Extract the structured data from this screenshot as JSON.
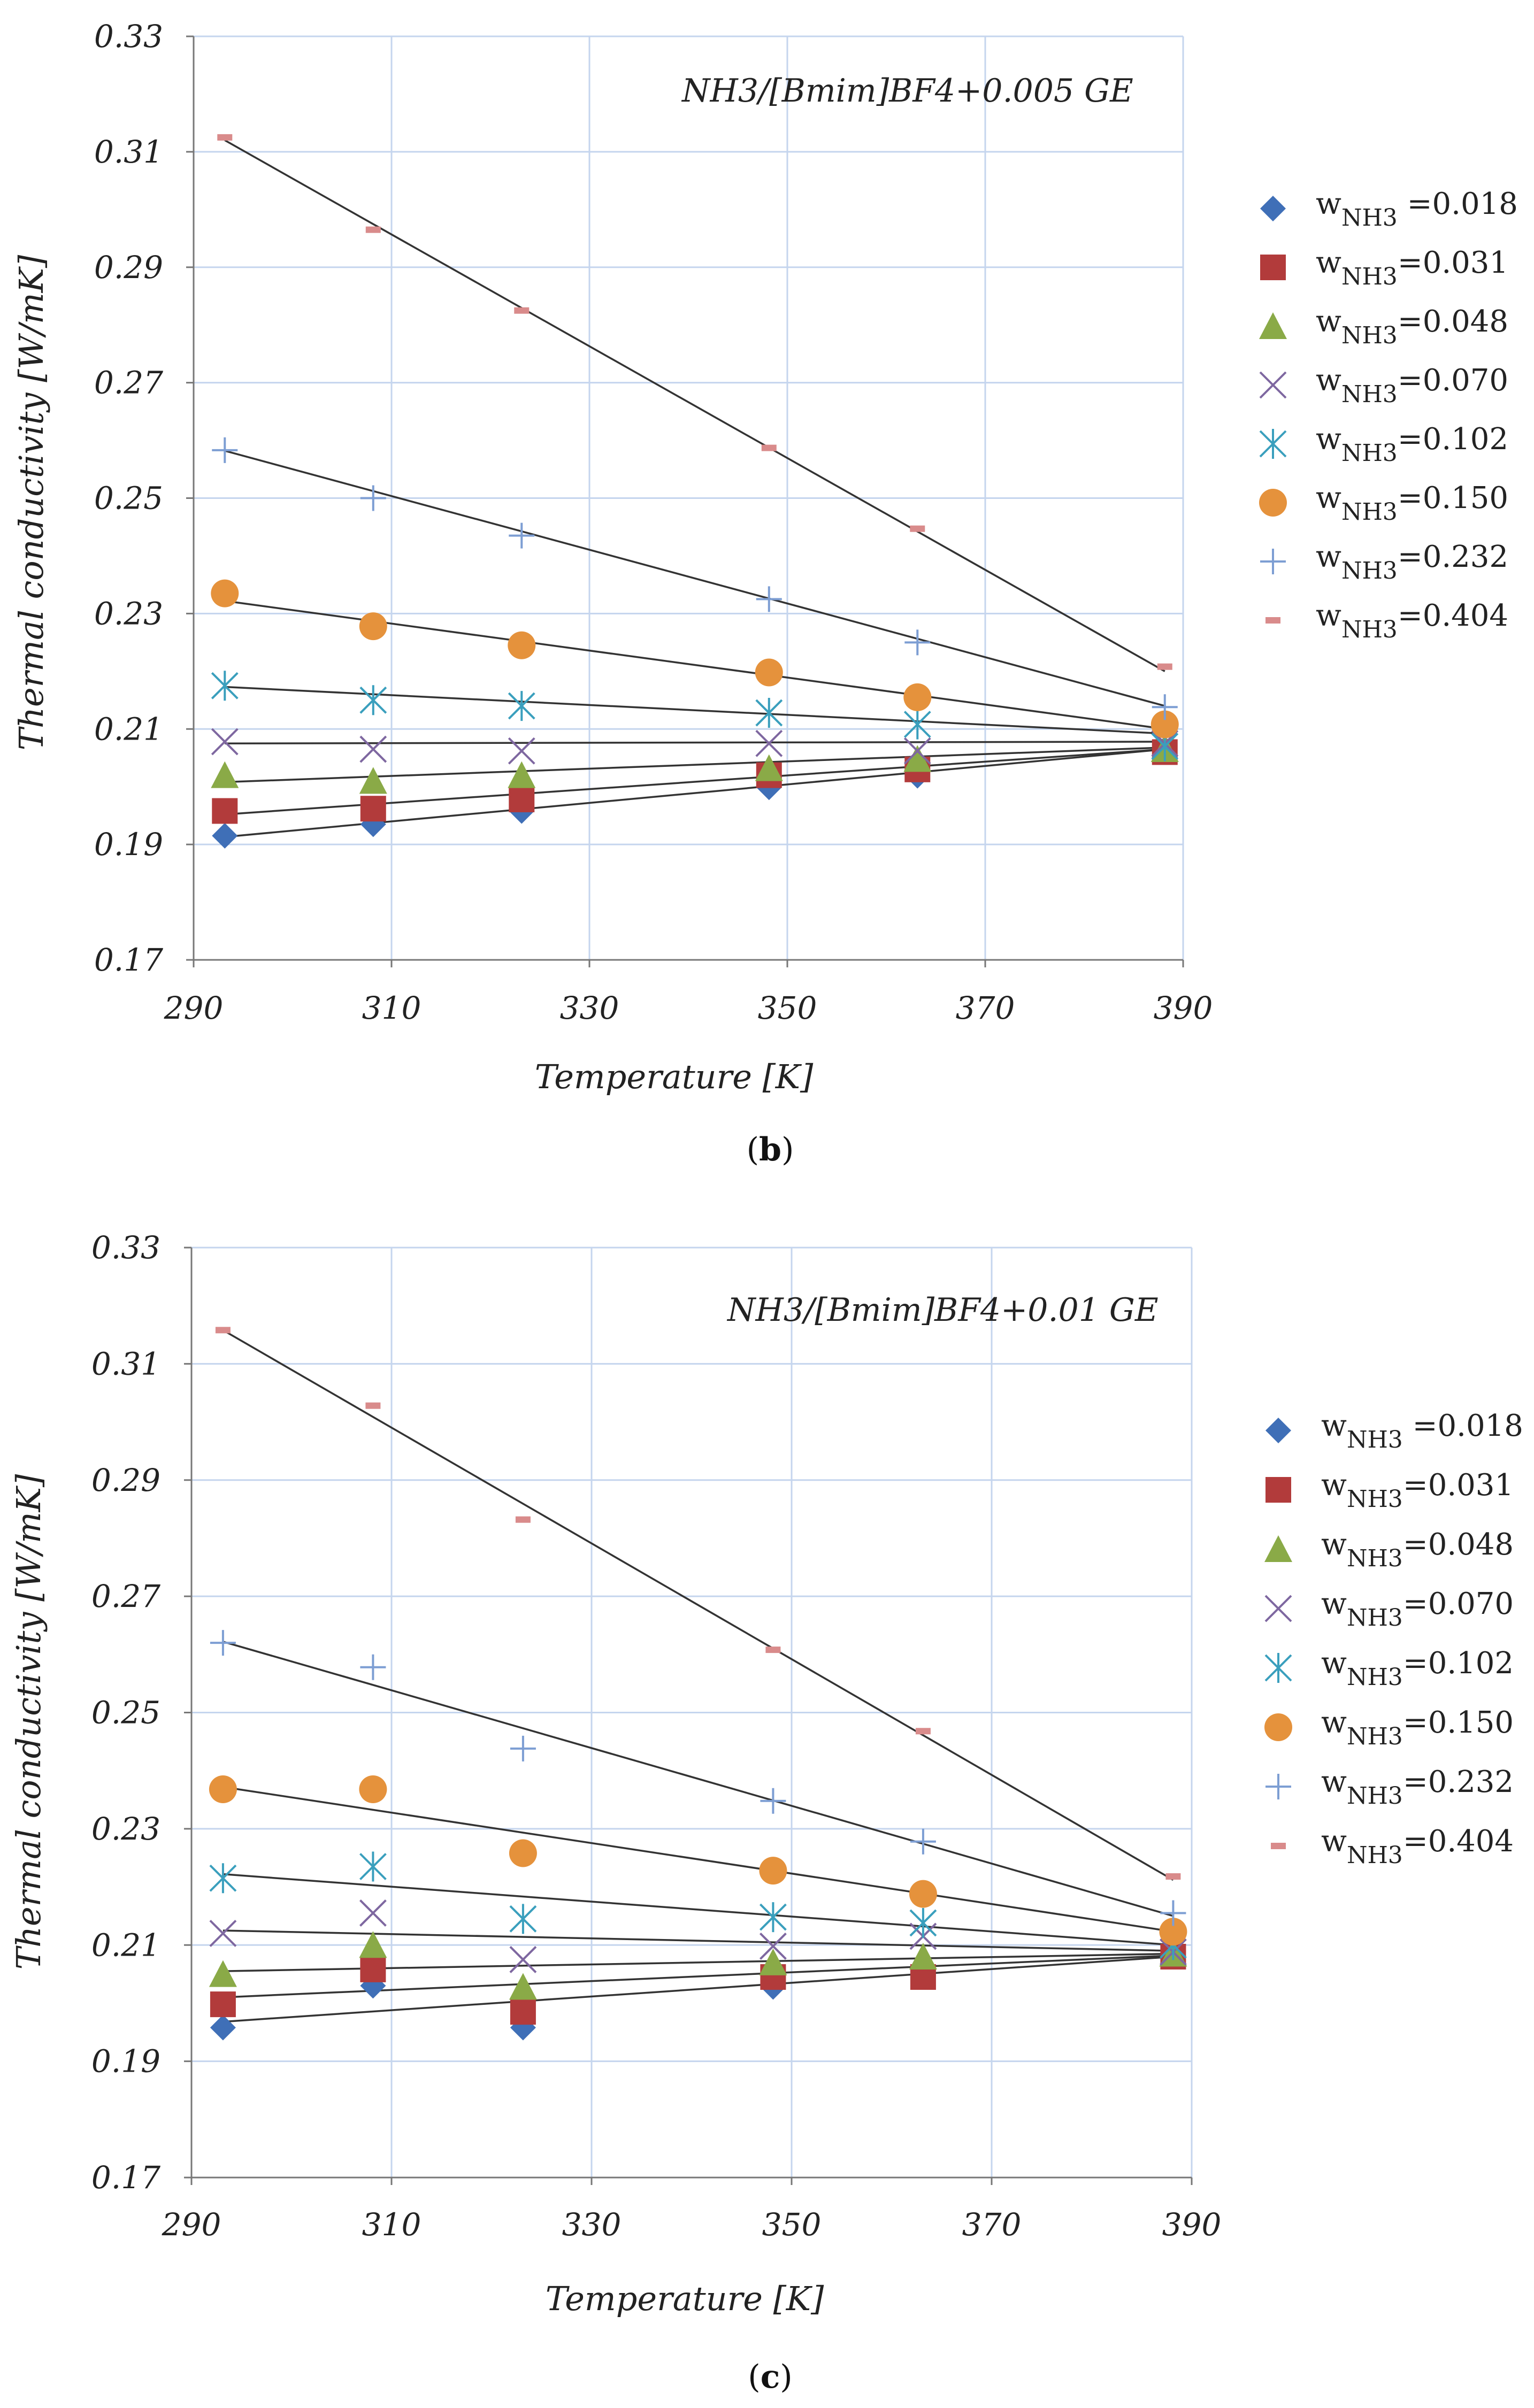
{
  "chart_data": [
    {
      "type": "scatter",
      "panel": "b",
      "caption": "b",
      "annotation": "NH3/[Bmim]BF4+0.005 GE",
      "title": "",
      "xlabel": "Temperature [K]",
      "ylabel": "Thermal conductivity [W/mK]",
      "xlim": [
        290,
        390
      ],
      "ylim": [
        0.17,
        0.33
      ],
      "xticks": [
        "290",
        "310",
        "330",
        "350",
        "370",
        "390"
      ],
      "yticks": [
        "0.17",
        "0.19",
        "0.21",
        "0.23",
        "0.25",
        "0.27",
        "0.29",
        "0.31",
        "0.33"
      ],
      "x": [
        293.15,
        308.15,
        323.15,
        348.15,
        363.15,
        388.15
      ],
      "series": [
        {
          "name": "w NH3 =0.018",
          "label_main": "w",
          "label_sub": "NH3",
          "label_value": " =0.018",
          "marker": "diamond",
          "color": "#3f6fb7",
          "values": [
            0.1915,
            0.1935,
            0.1958,
            0.1999,
            0.2019,
            0.2065
          ],
          "fit": [
            0.1913,
            0.2065
          ]
        },
        {
          "name": "w NH3 =0.031",
          "label_main": "w",
          "label_sub": "NH3",
          "label_value": "=0.031",
          "marker": "square",
          "color": "#b23b3b",
          "values": [
            0.1958,
            0.1962,
            0.1978,
            0.202,
            0.203,
            0.206
          ],
          "fit": [
            0.1952,
            0.2065
          ]
        },
        {
          "name": "w NH3 =0.048",
          "label_main": "w",
          "label_sub": "NH3",
          "label_value": "=0.048",
          "marker": "triangle",
          "color": "#8aaa47",
          "values": [
            0.202,
            0.201,
            0.202,
            0.2032,
            0.2048,
            0.2065
          ],
          "fit": [
            0.2008,
            0.2068
          ]
        },
        {
          "name": "w NH3 =0.070",
          "label_main": "w",
          "label_sub": "NH3",
          "label_value": "=0.070",
          "marker": "x",
          "color": "#7e67a0",
          "values": [
            0.2078,
            0.2065,
            0.2062,
            0.2075,
            0.2062,
            0.2075
          ],
          "fit": [
            0.2075,
            0.2078
          ]
        },
        {
          "name": "w NH3 =0.102",
          "label_main": "w",
          "label_sub": "NH3",
          "label_value": "=0.102",
          "marker": "star",
          "color": "#3a9fbd",
          "values": [
            0.2175,
            0.215,
            0.214,
            0.2128,
            0.2108,
            0.207
          ],
          "fit": [
            0.2173,
            0.2092
          ]
        },
        {
          "name": "w NH3 =0.150",
          "label_main": "w",
          "label_sub": "NH3",
          "label_value": "=0.150",
          "marker": "circle",
          "color": "#e5923c",
          "values": [
            0.2335,
            0.2278,
            0.2245,
            0.2198,
            0.2155,
            0.2108
          ],
          "fit": [
            0.2322,
            0.21
          ]
        },
        {
          "name": "w NH3 =0.232",
          "label_main": "w",
          "label_sub": "NH3",
          "label_value": "=0.232",
          "marker": "plus",
          "color": "#7d9ed3",
          "values": [
            0.2583,
            0.25,
            0.2435,
            0.2325,
            0.225,
            0.2138
          ],
          "fit": [
            0.2582,
            0.214
          ]
        },
        {
          "name": "w NH3 =0.404",
          "label_main": "w",
          "label_sub": "NH3",
          "label_value": "=0.404",
          "marker": "dash",
          "color": "#d98b8b",
          "values": [
            0.3125,
            0.2965,
            0.2825,
            0.2587,
            0.2447,
            0.2208
          ],
          "fit": [
            0.312,
            0.22
          ]
        }
      ]
    },
    {
      "type": "scatter",
      "panel": "c",
      "caption": "c",
      "annotation": "NH3/[Bmim]BF4+0.01 GE",
      "title": "",
      "xlabel": "Temperature [K]",
      "ylabel": "Thermal conductivity [W/mK]",
      "xlim": [
        290,
        390
      ],
      "ylim": [
        0.17,
        0.33
      ],
      "xticks": [
        "290",
        "310",
        "330",
        "350",
        "370",
        "390"
      ],
      "yticks": [
        "0.17",
        "0.19",
        "0.21",
        "0.23",
        "0.25",
        "0.27",
        "0.29",
        "0.31",
        "0.33"
      ],
      "x": [
        293.15,
        308.15,
        323.15,
        348.15,
        363.15,
        388.15
      ],
      "series": [
        {
          "name": "w NH3 =0.018",
          "label_main": "w",
          "label_sub": "NH3",
          "label_value": " =0.018",
          "marker": "diamond",
          "color": "#3f6fb7",
          "values": [
            0.1958,
            0.203,
            0.1958,
            0.2028,
            0.2048,
            0.208
          ],
          "fit": [
            0.1968,
            0.208
          ]
        },
        {
          "name": "w NH3 =0.031",
          "label_main": "w",
          "label_sub": "NH3",
          "label_value": "=0.031",
          "marker": "square",
          "color": "#b23b3b",
          "values": [
            0.1998,
            0.2058,
            0.1985,
            0.2045,
            0.2045,
            0.208
          ],
          "fit": [
            0.201,
            0.2082
          ]
        },
        {
          "name": "w NH3 =0.048",
          "label_main": "w",
          "label_sub": "NH3",
          "label_value": "=0.048",
          "marker": "triangle",
          "color": "#8aaa47",
          "values": [
            0.205,
            0.21,
            0.2028,
            0.207,
            0.208,
            0.2085
          ],
          "fit": [
            0.2055,
            0.2085
          ]
        },
        {
          "name": "w NH3 =0.070",
          "label_main": "w",
          "label_sub": "NH3",
          "label_value": "=0.070",
          "marker": "x",
          "color": "#7e67a0",
          "values": [
            0.212,
            0.2155,
            0.2075,
            0.2098,
            0.2115,
            0.2088
          ],
          "fit": [
            0.2125,
            0.209
          ]
        },
        {
          "name": "w NH3 =0.102",
          "label_main": "w",
          "label_sub": "NH3",
          "label_value": "=0.102",
          "marker": "star",
          "color": "#3a9fbd",
          "values": [
            0.2215,
            0.2235,
            0.2145,
            0.2148,
            0.2138,
            0.21
          ],
          "fit": [
            0.2222,
            0.21
          ]
        },
        {
          "name": "w NH3 =0.150",
          "label_main": "w",
          "label_sub": "NH3",
          "label_value": "=0.150",
          "marker": "circle",
          "color": "#e5923c",
          "values": [
            0.2368,
            0.2368,
            0.2258,
            0.2228,
            0.2188,
            0.2123
          ],
          "fit": [
            0.2372,
            0.2123
          ]
        },
        {
          "name": "w NH3 =0.232",
          "label_main": "w",
          "label_sub": "NH3",
          "label_value": "=0.232",
          "marker": "plus",
          "color": "#7d9ed3",
          "values": [
            0.262,
            0.2578,
            0.2438,
            0.2348,
            0.2278,
            0.2155
          ],
          "fit": [
            0.2622,
            0.215
          ]
        },
        {
          "name": "w NH3 =0.404",
          "label_main": "w",
          "label_sub": "NH3",
          "label_value": "=0.404",
          "marker": "dash",
          "color": "#d98b8b",
          "values": [
            0.3158,
            0.3028,
            0.2832,
            0.2608,
            0.2468,
            0.2218
          ],
          "fit": [
            0.3158,
            0.2212
          ]
        }
      ]
    }
  ]
}
